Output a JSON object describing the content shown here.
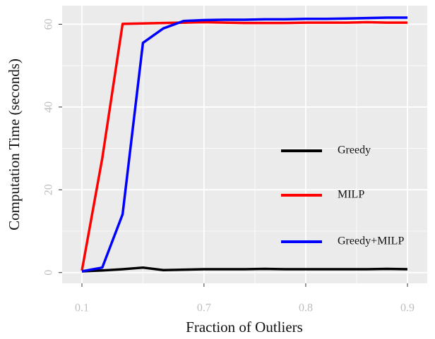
{
  "chart_data": {
    "type": "line",
    "x_label": "Fraction of Outliers",
    "y_label": "Computation Time (seconds)",
    "categories": [
      "0.1",
      null,
      null,
      null,
      null,
      null,
      "0.7",
      null,
      null,
      null,
      null,
      "0.8",
      null,
      null,
      null,
      null,
      "0.9"
    ],
    "series": [
      {
        "name": "Greedy",
        "color": "#000000",
        "values": [
          0.3,
          0.5,
          0.8,
          1.2,
          0.6,
          0.7,
          0.8,
          0.8,
          0.8,
          0.9,
          0.8,
          0.8,
          0.8,
          0.8,
          0.8,
          0.9,
          0.8
        ]
      },
      {
        "name": "MILP",
        "color": "#ff0000",
        "values": [
          0.5,
          27.6,
          60.1,
          60.2,
          60.3,
          60.4,
          60.5,
          60.4,
          60.3,
          60.3,
          60.3,
          60.4,
          60.4,
          60.4,
          60.5,
          60.4,
          60.4
        ]
      },
      {
        "name": "Greedy+MILP",
        "color": "#0000ff",
        "values": [
          0.3,
          1.2,
          14.1,
          55.5,
          59.0,
          60.8,
          61.0,
          61.1,
          61.1,
          61.2,
          61.2,
          61.3,
          61.3,
          61.4,
          61.5,
          61.6,
          61.6
        ]
      }
    ],
    "ylim": [
      -2.6,
      64.5
    ],
    "yticks": [
      0,
      20,
      40,
      60
    ],
    "grid": true
  }
}
